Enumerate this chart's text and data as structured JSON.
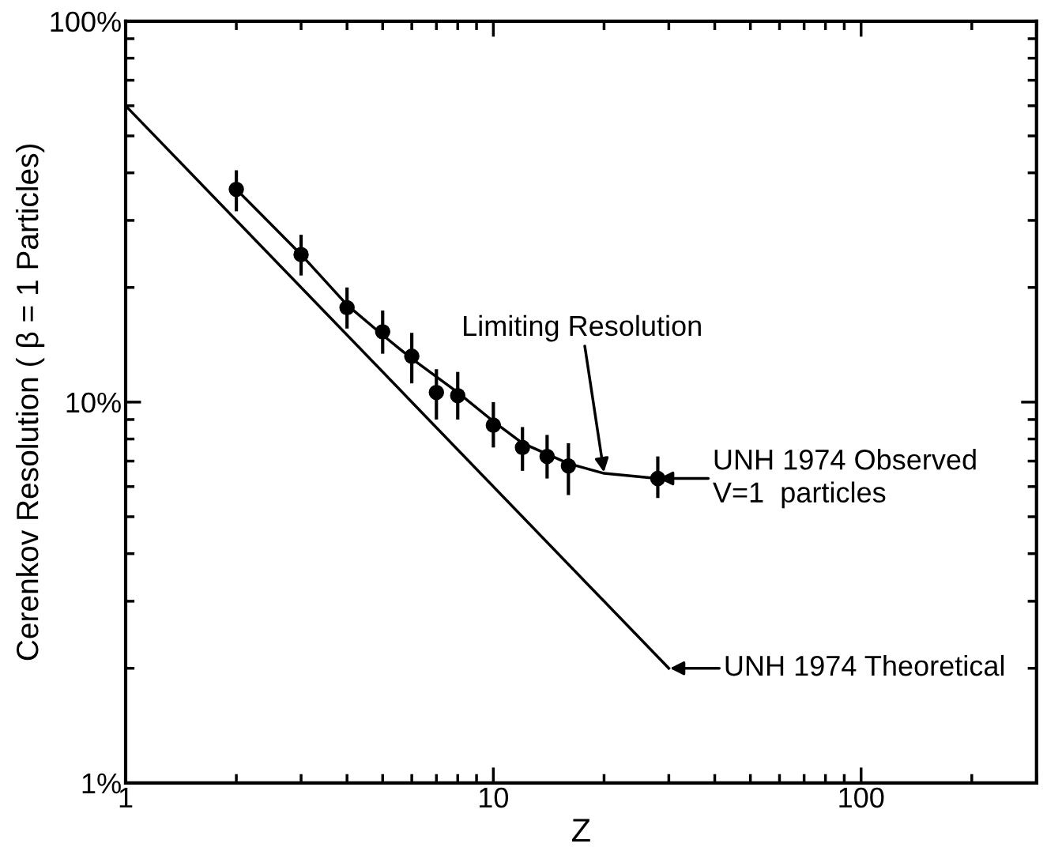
{
  "chart_data": {
    "type": "scatter",
    "xlabel": "Z",
    "ylabel": "Cerenkov Resolution ( β = 1 Particles)",
    "log": "xy",
    "xlim": [
      1,
      300
    ],
    "ylim": [
      1,
      100
    ],
    "xticks": [
      1,
      10,
      100
    ],
    "yticks": [
      {
        "value": 1,
        "label": "1%"
      },
      {
        "value": 10,
        "label": "10%"
      },
      {
        "value": 100,
        "label": "100%"
      }
    ],
    "grid": false,
    "legend": false,
    "series": [
      {
        "color": "#000000",
        "marker": "circle",
        "x": [
          2,
          3,
          4,
          5,
          6,
          7,
          8,
          10,
          12,
          14,
          16,
          28
        ],
        "values": [
          36.2,
          24.4,
          17.7,
          15.3,
          13.2,
          10.6,
          10.4,
          8.7,
          7.6,
          7.2,
          6.8,
          6.3
        ],
        "errors": [
          [
            31.7,
            40.6
          ],
          [
            21.5,
            27.5
          ],
          [
            15.6,
            20.0
          ],
          [
            13.4,
            17.4
          ],
          [
            11.2,
            15.2
          ],
          [
            9.0,
            12.2
          ],
          [
            9.0,
            12.0
          ],
          [
            7.6,
            10.0
          ],
          [
            6.6,
            8.6
          ],
          [
            6.3,
            8.2
          ],
          [
            5.7,
            7.8
          ],
          [
            5.6,
            7.2
          ]
        ]
      },
      {
        "type": "line",
        "color": "#000000",
        "line_style": "solid",
        "x": [
          2,
          3,
          4,
          5,
          6,
          8,
          10,
          12,
          16,
          20,
          28
        ],
        "values": [
          36.2,
          24.4,
          18.0,
          15.0,
          13.0,
          10.6,
          8.9,
          7.8,
          6.9,
          6.5,
          6.3
        ]
      },
      {
        "type": "line",
        "color": "#000000",
        "line_style": "solid",
        "x": [
          1,
          30
        ],
        "values": [
          60,
          2
        ]
      }
    ],
    "annotations": [
      {
        "text": "Limiting Resolution",
        "x": 20,
        "y": 6.5
      },
      {
        "text": "UNH 1974 Observed\nV=1  particles",
        "x": 28,
        "y": 6.3
      },
      {
        "text": "UNH 1974 Theoretical",
        "x": 30,
        "y": 2
      }
    ]
  }
}
